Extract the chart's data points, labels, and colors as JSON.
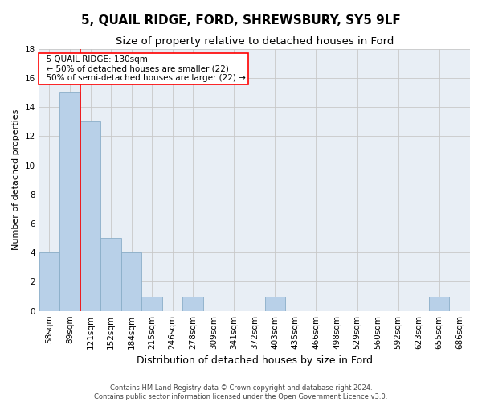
{
  "title": "5, QUAIL RIDGE, FORD, SHREWSBURY, SY5 9LF",
  "subtitle": "Size of property relative to detached houses in Ford",
  "xlabel": "Distribution of detached houses by size in Ford",
  "ylabel": "Number of detached properties",
  "footer1": "Contains HM Land Registry data © Crown copyright and database right 2024.",
  "footer2": "Contains public sector information licensed under the Open Government Licence v3.0.",
  "categories": [
    "58sqm",
    "89sqm",
    "121sqm",
    "152sqm",
    "184sqm",
    "215sqm",
    "246sqm",
    "278sqm",
    "309sqm",
    "341sqm",
    "372sqm",
    "403sqm",
    "435sqm",
    "466sqm",
    "498sqm",
    "529sqm",
    "560sqm",
    "592sqm",
    "623sqm",
    "655sqm",
    "686sqm"
  ],
  "values": [
    4,
    15,
    13,
    5,
    4,
    1,
    0,
    1,
    0,
    0,
    0,
    1,
    0,
    0,
    0,
    0,
    0,
    0,
    0,
    1,
    0
  ],
  "bar_color": "#b8d0e8",
  "bar_edge_color": "#8aaec8",
  "red_line_x": 1.5,
  "annotation_title": "5 QUAIL RIDGE: 130sqm",
  "annotation_line1": "← 50% of detached houses are smaller (22)",
  "annotation_line2": "50% of semi-detached houses are larger (22) →",
  "ylim": [
    0,
    18
  ],
  "yticks": [
    0,
    2,
    4,
    6,
    8,
    10,
    12,
    14,
    16,
    18
  ],
  "bg_color": "#e8eef5",
  "grid_color": "#c8c8c8",
  "title_fontsize": 11,
  "subtitle_fontsize": 9.5,
  "xlabel_fontsize": 9,
  "ylabel_fontsize": 8,
  "tick_fontsize": 7.5,
  "annotation_fontsize": 7.5,
  "footer_fontsize": 6
}
